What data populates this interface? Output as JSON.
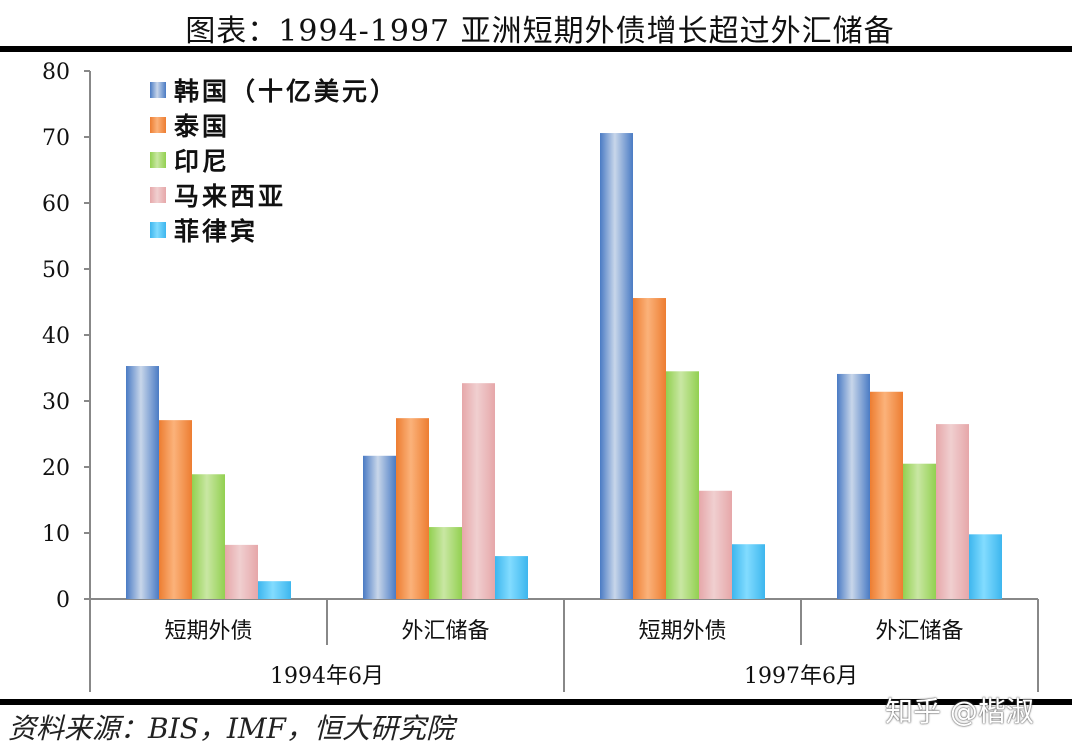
{
  "title": "图表：1994-1997 亚洲短期外债增长超过外汇储备",
  "source": "资料来源：BIS，IMF，恒大研究院",
  "watermark": "知乎 @楷淑",
  "chart_data": {
    "type": "bar",
    "title": "图表：1994-1997 亚洲短期外债增长超过外汇储备",
    "xlabel": "",
    "ylabel": "",
    "unit": "十亿美元",
    "ylim": [
      0,
      80
    ],
    "yticks": [
      0,
      10,
      20,
      30,
      40,
      50,
      60,
      70,
      80
    ],
    "grid": false,
    "legend_position": "top-left",
    "groups": [
      "1994年6月",
      "1997年6月"
    ],
    "categories": [
      "短期外债",
      "外汇储备",
      "短期外债",
      "外汇储备"
    ],
    "category_groups": [
      "1994年6月",
      "1994年6月",
      "1997年6月",
      "1997年6月"
    ],
    "series": [
      {
        "name": "韩国（十亿美元）",
        "color": "#4a7bc4",
        "values": [
          35.3,
          21.7,
          70.6,
          34.1
        ]
      },
      {
        "name": "泰国",
        "color": "#ed7d31",
        "values": [
          27.1,
          27.4,
          45.6,
          31.4
        ]
      },
      {
        "name": "印尼",
        "color": "#92d050",
        "values": [
          18.9,
          10.9,
          34.5,
          20.5
        ]
      },
      {
        "name": "马来西亚",
        "color": "#e6a7a9",
        "values": [
          8.2,
          32.7,
          16.4,
          26.5
        ]
      },
      {
        "name": "菲律宾",
        "color": "#3db6ee",
        "values": [
          2.7,
          6.5,
          8.3,
          9.8
        ]
      }
    ]
  }
}
